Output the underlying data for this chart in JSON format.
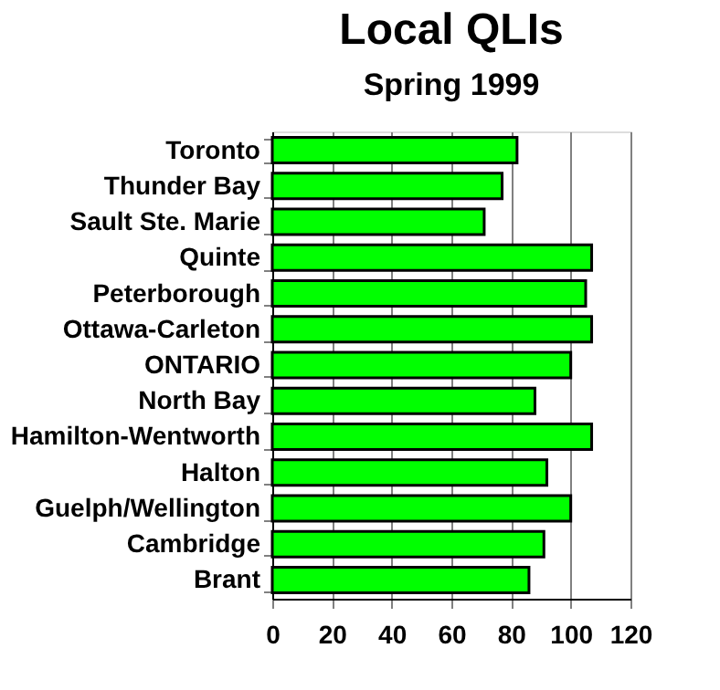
{
  "chart_data": {
    "type": "bar",
    "orientation": "horizontal",
    "title": "Local QLIs",
    "subtitle": "Spring 1999",
    "categories": [
      "Toronto",
      "Thunder Bay",
      "Sault Ste. Marie",
      "Quinte",
      "Peterborough",
      "Ottawa-Carleton",
      "ONTARIO",
      "North Bay",
      "Hamilton-Wentworth",
      "Halton",
      "Guelph/Wellington",
      "Cambridge",
      "Brant"
    ],
    "values": [
      82,
      77,
      71,
      107,
      105,
      107,
      100,
      88,
      107,
      92,
      100,
      91,
      86
    ],
    "color": "#00ff00",
    "xlim": [
      0,
      120
    ],
    "xticks": [
      0,
      20,
      40,
      60,
      80,
      100,
      120
    ],
    "grid": "x"
  }
}
